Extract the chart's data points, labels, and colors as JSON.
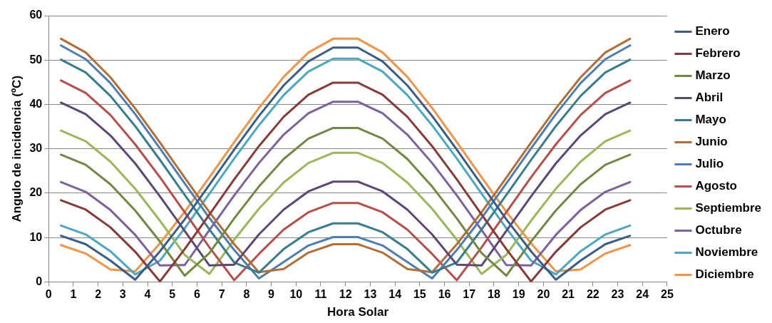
{
  "chart_data": {
    "type": "line",
    "xlabel": "Hora Solar",
    "ylabel": "Angulo de incidencia (ºC)",
    "x": [
      0.5,
      1.5,
      2.5,
      3.5,
      4.5,
      5.5,
      6.5,
      7.5,
      8.5,
      9.5,
      10.5,
      11.5,
      12.5,
      13.5,
      14.5,
      15.5,
      16.5,
      17.5,
      18.5,
      19.5,
      20.5,
      21.5,
      22.5,
      23.5
    ],
    "xlim": [
      0,
      25
    ],
    "xticks": [
      0,
      1,
      2,
      3,
      4,
      5,
      6,
      7,
      8,
      9,
      10,
      11,
      12,
      13,
      14,
      15,
      16,
      17,
      18,
      19,
      20,
      21,
      22,
      23,
      24,
      25
    ],
    "ylim": [
      0,
      60
    ],
    "yticks": [
      0,
      10,
      20,
      30,
      40,
      50,
      60
    ],
    "grid": "y",
    "legend": "right",
    "marker": "none",
    "line_style": "solid",
    "series": [
      {
        "name": "Enero",
        "color": "#385d8a",
        "values": [
          10.4,
          8.5,
          4.8,
          0.5,
          6.9,
          14.1,
          21.9,
          29.8,
          37.4,
          44.3,
          49.7,
          52.8,
          52.8,
          49.7,
          44.3,
          37.4,
          29.8,
          21.9,
          14.1,
          6.9,
          0.5,
          4.8,
          8.5,
          10.4
        ]
      },
      {
        "name": "Febrero",
        "color": "#8c3836",
        "values": [
          18.4,
          16.3,
          12.3,
          6.8,
          0.1,
          7.4,
          15.2,
          23.1,
          30.6,
          37.2,
          42.2,
          44.9,
          44.9,
          42.2,
          37.2,
          30.6,
          23.1,
          15.2,
          7.4,
          0.1,
          6.8,
          12.3,
          16.3,
          18.4
        ]
      },
      {
        "name": "Marzo",
        "color": "#71893f",
        "values": [
          28.7,
          26.4,
          22.0,
          16.1,
          9.1,
          1.4,
          6.5,
          14.3,
          21.5,
          27.7,
          32.3,
          34.7,
          34.7,
          32.3,
          27.7,
          21.5,
          14.3,
          6.5,
          1.4,
          9.1,
          16.1,
          22.0,
          26.4,
          28.7
        ]
      },
      {
        "name": "Abril",
        "color": "#5c4776",
        "values": [
          40.4,
          37.8,
          33.0,
          26.7,
          19.3,
          11.5,
          3.7,
          3.9,
          10.7,
          16.3,
          20.4,
          22.6,
          22.6,
          20.4,
          16.3,
          10.7,
          3.9,
          3.7,
          11.5,
          19.3,
          26.7,
          33.0,
          37.8,
          40.4
        ]
      },
      {
        "name": "Mayo",
        "color": "#357d91",
        "values": [
          50.1,
          47.2,
          41.9,
          35.1,
          27.5,
          19.6,
          11.8,
          4.4,
          2.1,
          7.4,
          11.2,
          13.2,
          13.2,
          11.2,
          7.4,
          2.1,
          4.4,
          11.8,
          19.6,
          27.5,
          35.1,
          41.9,
          47.2,
          50.1
        ]
      },
      {
        "name": "Junio",
        "color": "#b66d31",
        "values": [
          54.8,
          51.7,
          46.1,
          39.1,
          31.4,
          23.5,
          15.7,
          8.5,
          2.2,
          2.9,
          6.6,
          8.5,
          8.5,
          6.6,
          2.9,
          2.2,
          8.5,
          15.7,
          23.5,
          31.4,
          39.1,
          46.1,
          51.7,
          54.8
        ]
      },
      {
        "name": "Julio",
        "color": "#4a7ebb",
        "values": [
          53.3,
          50.2,
          44.8,
          37.8,
          30.1,
          22.2,
          14.4,
          7.2,
          0.8,
          4.5,
          8.2,
          10.1,
          10.1,
          8.2,
          4.5,
          0.8,
          7.2,
          14.4,
          22.2,
          30.1,
          37.8,
          44.8,
          50.2,
          53.3
        ]
      },
      {
        "name": "Agosto",
        "color": "#be4b48",
        "values": [
          45.4,
          42.6,
          37.6,
          31.0,
          23.6,
          15.7,
          7.8,
          0.4,
          6.3,
          11.8,
          15.7,
          17.8,
          17.8,
          15.7,
          11.8,
          6.3,
          0.4,
          7.8,
          15.7,
          23.6,
          31.0,
          37.6,
          42.6,
          45.4
        ]
      },
      {
        "name": "Septiembre",
        "color": "#98b954",
        "values": [
          34.1,
          31.7,
          27.1,
          21.0,
          13.8,
          6.1,
          1.8,
          9.5,
          16.5,
          22.4,
          26.8,
          29.1,
          29.1,
          26.8,
          22.4,
          16.5,
          9.5,
          1.8,
          6.1,
          13.8,
          21.0,
          27.1,
          31.7,
          34.1
        ]
      },
      {
        "name": "Octubre",
        "color": "#7d60a0",
        "values": [
          22.5,
          20.3,
          16.2,
          10.6,
          3.7,
          3.8,
          11.7,
          19.5,
          26.8,
          33.2,
          38.0,
          40.6,
          40.6,
          38.0,
          33.2,
          26.8,
          19.5,
          11.7,
          3.8,
          3.7,
          10.6,
          16.2,
          20.3,
          22.5
        ]
      },
      {
        "name": "Noviembre",
        "color": "#46aac5",
        "values": [
          12.7,
          10.7,
          6.9,
          1.7,
          4.8,
          12.1,
          19.9,
          27.8,
          35.3,
          42.1,
          47.4,
          50.3,
          50.3,
          47.4,
          42.1,
          35.3,
          27.8,
          19.9,
          12.1,
          4.8,
          1.7,
          6.9,
          10.7,
          12.7
        ]
      },
      {
        "name": "Diciembre",
        "color": "#f69240",
        "values": [
          8.3,
          6.4,
          2.8,
          2.4,
          8.7,
          15.8,
          23.6,
          31.5,
          39.2,
          46.2,
          51.7,
          54.8,
          54.8,
          51.7,
          46.2,
          39.2,
          31.5,
          23.6,
          15.8,
          8.7,
          2.4,
          2.8,
          6.4,
          8.3
        ]
      }
    ]
  }
}
